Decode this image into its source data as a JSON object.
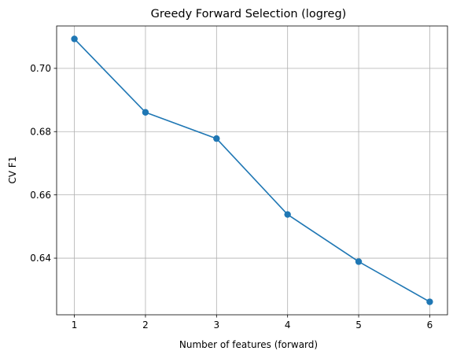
{
  "chart_data": {
    "type": "line",
    "title": "Greedy Forward Selection (logreg)",
    "xlabel": "Number of features (forward)",
    "ylabel": "CV F1",
    "x": [
      1,
      2,
      3,
      4,
      5,
      6
    ],
    "series": [
      {
        "values": [
          0.7093,
          0.6861,
          0.6778,
          0.6538,
          0.6389,
          0.6262
        ]
      }
    ],
    "xticks": [
      1,
      2,
      3,
      4,
      5,
      6
    ],
    "xtick_labels": [
      "1",
      "2",
      "3",
      "4",
      "5",
      "6"
    ],
    "yticks": [
      0.64,
      0.66,
      0.68,
      0.7
    ],
    "ytick_labels": [
      "0.64",
      "0.66",
      "0.68",
      "0.70"
    ],
    "xlim": [
      0.75,
      6.25
    ],
    "ylim": [
      0.6221,
      0.7134
    ],
    "grid": true,
    "marker": "circle",
    "line_color": "#1f77b4"
  }
}
